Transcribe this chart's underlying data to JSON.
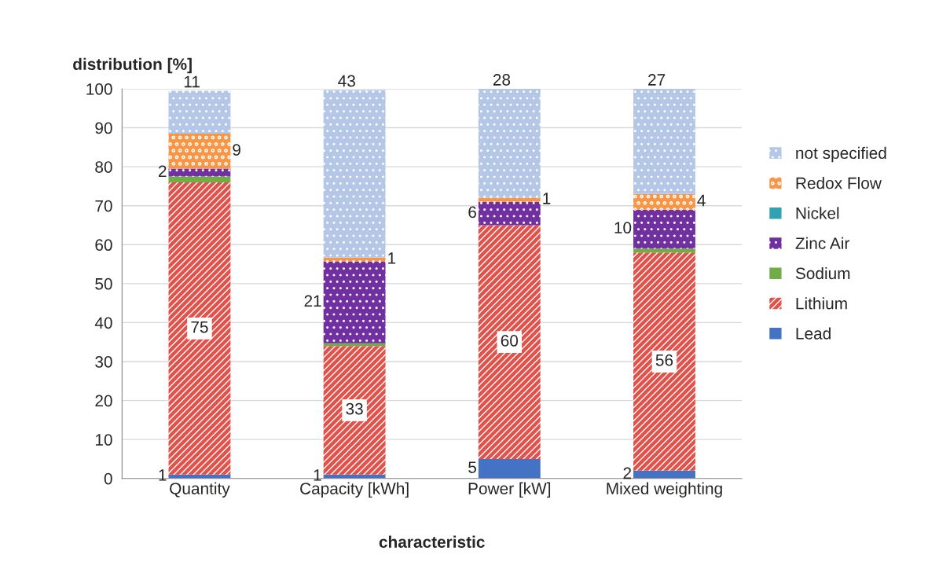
{
  "chart_data": {
    "type": "bar",
    "stacked": true,
    "ylabel": "distribution [%]",
    "xlabel": "characteristic",
    "categories": [
      "Quantity",
      "Capacity [kWh]",
      "Power [kW]",
      "Mixed weighting"
    ],
    "series": [
      {
        "name": "Lead",
        "color": "#4472c4",
        "values": [
          1,
          1,
          5,
          2
        ],
        "value_labels": [
          "1",
          "1",
          "5",
          "2"
        ]
      },
      {
        "name": "Lithium",
        "color": "#e0524a",
        "values": [
          75,
          33,
          60,
          56
        ],
        "value_labels": [
          "75",
          "33",
          "60",
          "56"
        ]
      },
      {
        "name": "Sodium",
        "color": "#70ad47",
        "values": [
          1.5,
          0.7,
          0,
          1
        ],
        "value_labels": [
          null,
          null,
          null,
          null
        ]
      },
      {
        "name": "Zinc Air",
        "color": "#7030a0",
        "values": [
          2,
          21,
          6,
          10
        ],
        "value_labels": [
          "2",
          "21",
          "6",
          "10"
        ]
      },
      {
        "name": "Nickel",
        "color": "#31a2b2",
        "values": [
          0,
          0,
          0,
          0
        ],
        "value_labels": [
          null,
          null,
          null,
          null
        ]
      },
      {
        "name": "Redox Flow",
        "color": "#f79646",
        "values": [
          9,
          1,
          1,
          4
        ],
        "value_labels": [
          "9",
          "1",
          "1",
          "4"
        ]
      },
      {
        "name": "not specified",
        "color": "#b4c7e7",
        "values": [
          11,
          43,
          28,
          27
        ],
        "value_labels": [
          "11",
          "43",
          "28",
          "27"
        ]
      }
    ],
    "ylim": [
      0,
      100
    ],
    "yticks": [
      0,
      10,
      20,
      30,
      40,
      50,
      60,
      70,
      80,
      90,
      100
    ],
    "grid": "y",
    "legend": "right"
  }
}
